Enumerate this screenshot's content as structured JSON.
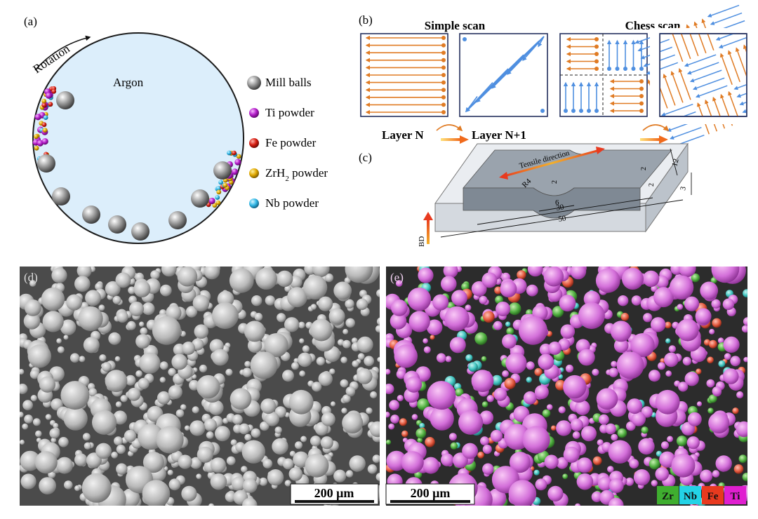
{
  "panel_a": {
    "label": "(a)",
    "rotation": "Rotation",
    "chamber": "Argon",
    "legend": [
      {
        "key": "mill",
        "text": "Mill balls",
        "color": "#8f8f8f"
      },
      {
        "key": "ti",
        "text": "Ti powder",
        "color": "#b31cc9"
      },
      {
        "key": "fe",
        "text": "Fe powder",
        "color": "#d61c10"
      },
      {
        "key": "zr",
        "text": "ZrH",
        "sub": "2",
        "text_after": " powder",
        "color": "#e0a800"
      },
      {
        "key": "nb",
        "text": "Nb powder",
        "color": "#31b7e6"
      }
    ]
  },
  "panel_b": {
    "label": "(b)",
    "simple_title": "Simple scan",
    "chess_title": "Chess scan",
    "layer_n": "Layer N",
    "layer_n1": "Layer N+1",
    "orange": "#e07b24",
    "blue": "#4f8fe0",
    "frame": "#24305e"
  },
  "panel_c": {
    "label": "(c)",
    "tensile": "Tensile direction",
    "bd": "BD",
    "dims": {
      "r": "R4",
      "gauge_h": "2",
      "t1": "2",
      "t2": "2",
      "width": "12",
      "thick": "3",
      "d6": "6",
      "d30": "30",
      "d50": "50"
    }
  },
  "panel_d": {
    "label": "(d)",
    "scale": "200 μm"
  },
  "panel_e": {
    "label": "(e)",
    "scale": "200 μm",
    "elements": [
      {
        "text": "Zr",
        "color": "#3fae2f"
      },
      {
        "text": "Nb",
        "color": "#23d3e6"
      },
      {
        "text": "Fe",
        "color": "#e83a1f"
      },
      {
        "text": "Ti",
        "color": "#e01fd0"
      }
    ]
  }
}
